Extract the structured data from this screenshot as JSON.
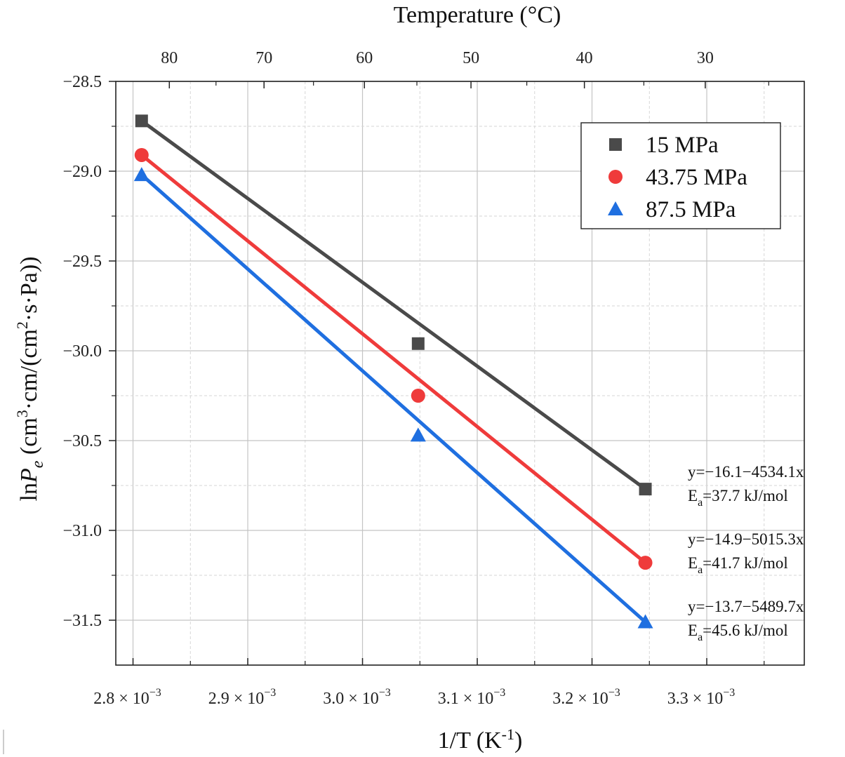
{
  "chart_data": {
    "type": "scatter",
    "x_axis": {
      "label": "1/T (K",
      "label_sup": "-1",
      "label_end": ")",
      "range": [
        2.785,
        3.385
      ],
      "ticks": [
        2.8,
        2.9,
        3.0,
        3.1,
        3.2,
        3.3
      ],
      "tick_labels": [
        "2.8 × 10",
        "2.9 × 10",
        "3.0 × 10",
        "3.1 × 10",
        "3.2 × 10",
        "3.3 × 10"
      ],
      "tick_label_sup": "−3",
      "unit_scale": "x 10^-3"
    },
    "y_axis": {
      "label_prefix": "ln",
      "label_var": "P",
      "label_sub": "e",
      "label_part1": " (cm",
      "label_sup1": "3",
      "label_part2": "·cm/(cm",
      "label_sup2": "2",
      "label_part3": "·s·Pa))",
      "range": [
        -31.75,
        -28.5
      ],
      "ticks": [
        -28.5,
        -29.0,
        -29.5,
        -30.0,
        -30.5,
        -31.0,
        -31.5
      ],
      "tick_labels": [
        "−28.5",
        "−29.0",
        "−29.5",
        "−30.0",
        "−30.5",
        "−31.0",
        "−31.5"
      ]
    },
    "top_axis": {
      "label": "Temperature (°C)",
      "ticks_celsius": [
        80,
        70,
        60,
        50,
        40,
        30
      ],
      "tick_labels": [
        "80",
        "70",
        "60",
        "50",
        "40",
        "30"
      ]
    },
    "grid": true,
    "legend_position": "top-right",
    "series": [
      {
        "name": "15 MPa",
        "color": "#4a4a4a",
        "marker": "square",
        "x": [
          2.8075,
          3.0485,
          3.2465
        ],
        "y": [
          -28.72,
          -29.96,
          -30.77
        ],
        "fit": {
          "intercept": -16.1,
          "slope": -4534.1
        },
        "equation": "y=−16.1−4534.1x",
        "ea_prefix": "E",
        "ea_sub": "a",
        "ea_value": "=37.7 kJ/mol"
      },
      {
        "name": "43.75 MPa",
        "color": "#ef3b3b",
        "marker": "circle",
        "x": [
          2.8075,
          3.0485,
          3.2465
        ],
        "y": [
          -28.91,
          -30.25,
          -31.18
        ],
        "fit": {
          "intercept": -14.9,
          "slope": -5015.3
        },
        "equation": "y=−14.9−5015.3x",
        "ea_prefix": "E",
        "ea_sub": "a",
        "ea_value": "=41.7 kJ/mol"
      },
      {
        "name": "87.5 MPa",
        "color": "#1f6fe0",
        "marker": "triangle",
        "x": [
          2.8075,
          3.0485,
          3.2465
        ],
        "y": [
          -29.02,
          -30.47,
          -31.51
        ],
        "fit": {
          "intercept": -13.7,
          "slope": -5489.7
        },
        "equation": "y=−13.7−5489.7x",
        "ea_prefix": "E",
        "ea_sub": "a",
        "ea_value": "=45.6 kJ/mol"
      }
    ]
  }
}
